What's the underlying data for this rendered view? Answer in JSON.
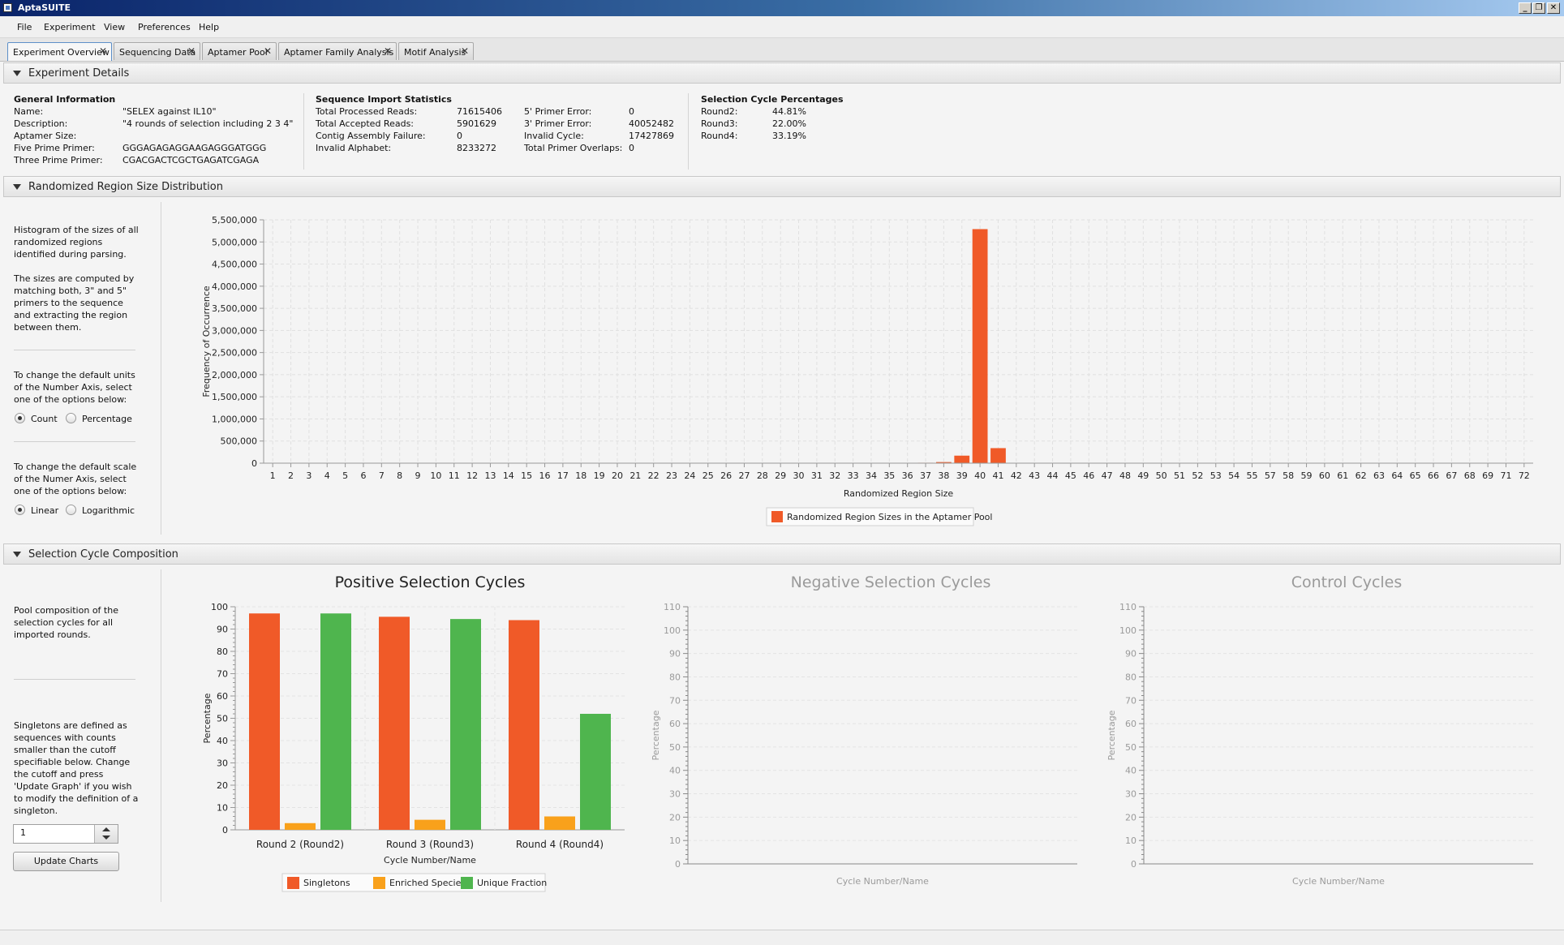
{
  "window": {
    "title": "AptaSUITE"
  },
  "colors": {
    "singletons": "#f05a28",
    "enriched": "#f9a11b",
    "unique": "#4fb54e",
    "sizes": "#f05a28"
  },
  "menubar": {
    "items": [
      "File",
      "Experiment",
      "View",
      "Preferences",
      "Help"
    ]
  },
  "tabs": [
    {
      "label": "Experiment Overview",
      "active": true
    },
    {
      "label": "Sequencing Data"
    },
    {
      "label": "Aptamer Pool"
    },
    {
      "label": "Aptamer Family Analysis"
    },
    {
      "label": "Motif Analysis"
    }
  ],
  "experiment_details": {
    "section_title": "Experiment Details",
    "general": {
      "heading": "General Information",
      "rows": [
        {
          "label": "Name:",
          "value": "\"SELEX against IL10\""
        },
        {
          "label": "Description:",
          "value": "\"4 rounds of selection including 2 3 4\""
        },
        {
          "label": "Aptamer Size:",
          "value": ""
        },
        {
          "label": "Five Prime Primer:",
          "value": "GGGAGAGAGGAAGAGGGATGGG"
        },
        {
          "label": "Three Prime Primer:",
          "value": "CGACGACTCGCTGAGATCGAGA"
        }
      ]
    },
    "import_stats": {
      "heading": "Sequence Import Statistics",
      "left": [
        {
          "label": "Total Processed Reads:",
          "value": "71615406"
        },
        {
          "label": "Total Accepted Reads:",
          "value": "5901629"
        },
        {
          "label": "Contig Assembly Failure:",
          "value": "0"
        },
        {
          "label": "Invalid Alphabet:",
          "value": "8233272"
        }
      ],
      "right": [
        {
          "label": "5' Primer Error:",
          "value": "0"
        },
        {
          "label": "3' Primer Error:",
          "value": "40052482"
        },
        {
          "label": "Invalid Cycle:",
          "value": "17427869"
        },
        {
          "label": "Total Primer Overlaps:",
          "value": "0"
        }
      ]
    },
    "cycle_percentages": {
      "heading": "Selection Cycle Percentages",
      "rows": [
        {
          "label": "Round2:",
          "value": "44.81%"
        },
        {
          "label": "Round3:",
          "value": "22.00%"
        },
        {
          "label": "Round4:",
          "value": "33.19%"
        }
      ]
    }
  },
  "region_size": {
    "section_title": "Randomized Region Size Distribution",
    "description": "Histogram of the sizes of all\nrandomized regions\nidentified during parsing.\n\nThe sizes are computed by\nmatching both, 3\" and 5\"\nprimers to the sequence\nand extracting the region\nbetween them.",
    "units_text": "To change the default units\nof the Number Axis, select\none of the options below:",
    "units_options": [
      "Count",
      "Percentage"
    ],
    "units_selected": "Count",
    "scale_text": "To change the default scale\nof the Numer Axis, select\none of the options below:",
    "scale_options": [
      "Linear",
      "Logarithmic"
    ],
    "scale_selected": "Linear"
  },
  "composition": {
    "section_title": "Selection Cycle Composition",
    "description": "Pool composition of the\nselection cycles for all\nimported rounds.",
    "singleton_text": "Singletons are defined as\nsequences with counts\nsmaller than the cutoff\nspecifiable below. Change\nthe cutoff and press\n'Update Graph' if you wish\nto modify the definition of a\nsingleton.",
    "cutoff_value": "1",
    "update_button": "Update Charts"
  },
  "chart_data": [
    {
      "type": "bar",
      "title": "",
      "xlabel": "Randomized Region Size",
      "ylabel": "Frequency of Occurrence",
      "ylim": [
        0,
        5500000
      ],
      "yticks": [
        "0",
        "500,000",
        "1,000,000",
        "1,500,000",
        "2,000,000",
        "2,500,000",
        "3,000,000",
        "3,500,000",
        "4,000,000",
        "4,500,000",
        "5,000,000",
        "5,500,000"
      ],
      "categories": [
        "1",
        "2",
        "3",
        "4",
        "5",
        "6",
        "7",
        "8",
        "9",
        "10",
        "11",
        "12",
        "13",
        "14",
        "15",
        "16",
        "17",
        "18",
        "19",
        "20",
        "21",
        "22",
        "23",
        "24",
        "25",
        "26",
        "27",
        "28",
        "29",
        "30",
        "31",
        "32",
        "33",
        "34",
        "35",
        "36",
        "37",
        "38",
        "39",
        "40",
        "41",
        "42",
        "43",
        "44",
        "45",
        "46",
        "47",
        "48",
        "49",
        "50",
        "51",
        "52",
        "53",
        "54",
        "55",
        "57",
        "58",
        "59",
        "60",
        "61",
        "62",
        "63",
        "64",
        "65",
        "66",
        "67",
        "68",
        "69",
        "71",
        "72"
      ],
      "series": [
        {
          "name": "Randomized Region Sizes in the Aptamer Pool",
          "values": [
            0,
            0,
            0,
            0,
            0,
            0,
            0,
            0,
            0,
            0,
            0,
            0,
            0,
            0,
            0,
            0,
            0,
            0,
            0,
            0,
            0,
            0,
            0,
            0,
            0,
            0,
            0,
            0,
            0,
            0,
            0,
            0,
            0,
            0,
            0,
            0,
            10000,
            25000,
            170000,
            5290000,
            340000,
            8000,
            0,
            0,
            0,
            0,
            0,
            0,
            0,
            0,
            0,
            0,
            0,
            0,
            0,
            0,
            0,
            0,
            0,
            0,
            0,
            0,
            0,
            0,
            0,
            0,
            0,
            0,
            0,
            0
          ]
        }
      ],
      "legend": "bottom"
    },
    {
      "type": "bar",
      "title": "Positive Selection Cycles",
      "xlabel": "Cycle Number/Name",
      "ylabel": "Percentage",
      "ylim": [
        0,
        100
      ],
      "yticks": [
        "0",
        "10",
        "20",
        "30",
        "40",
        "50",
        "60",
        "70",
        "80",
        "90",
        "100"
      ],
      "categories": [
        "Round 2 (Round2)",
        "Round 3 (Round3)",
        "Round 4 (Round4)"
      ],
      "series": [
        {
          "name": "Singletons",
          "values": [
            97,
            95.5,
            94
          ]
        },
        {
          "name": "Enriched Species",
          "values": [
            3,
            4.5,
            6
          ]
        },
        {
          "name": "Unique Fraction",
          "values": [
            97,
            94.5,
            52
          ]
        }
      ],
      "legend": "bottom"
    },
    {
      "type": "bar",
      "title": "Negative Selection Cycles",
      "xlabel": "Cycle Number/Name",
      "ylabel": "Percentage",
      "ylim": [
        0,
        110
      ],
      "yticks": [
        "0",
        "10",
        "20",
        "30",
        "40",
        "50",
        "60",
        "70",
        "80",
        "90",
        "100",
        "110"
      ],
      "categories": [],
      "series": []
    },
    {
      "type": "bar",
      "title": "Control Cycles",
      "xlabel": "Cycle Number/Name",
      "ylabel": "Percentage",
      "ylim": [
        0,
        110
      ],
      "yticks": [
        "0",
        "10",
        "20",
        "30",
        "40",
        "50",
        "60",
        "70",
        "80",
        "90",
        "100",
        "110"
      ],
      "categories": [],
      "series": []
    }
  ]
}
